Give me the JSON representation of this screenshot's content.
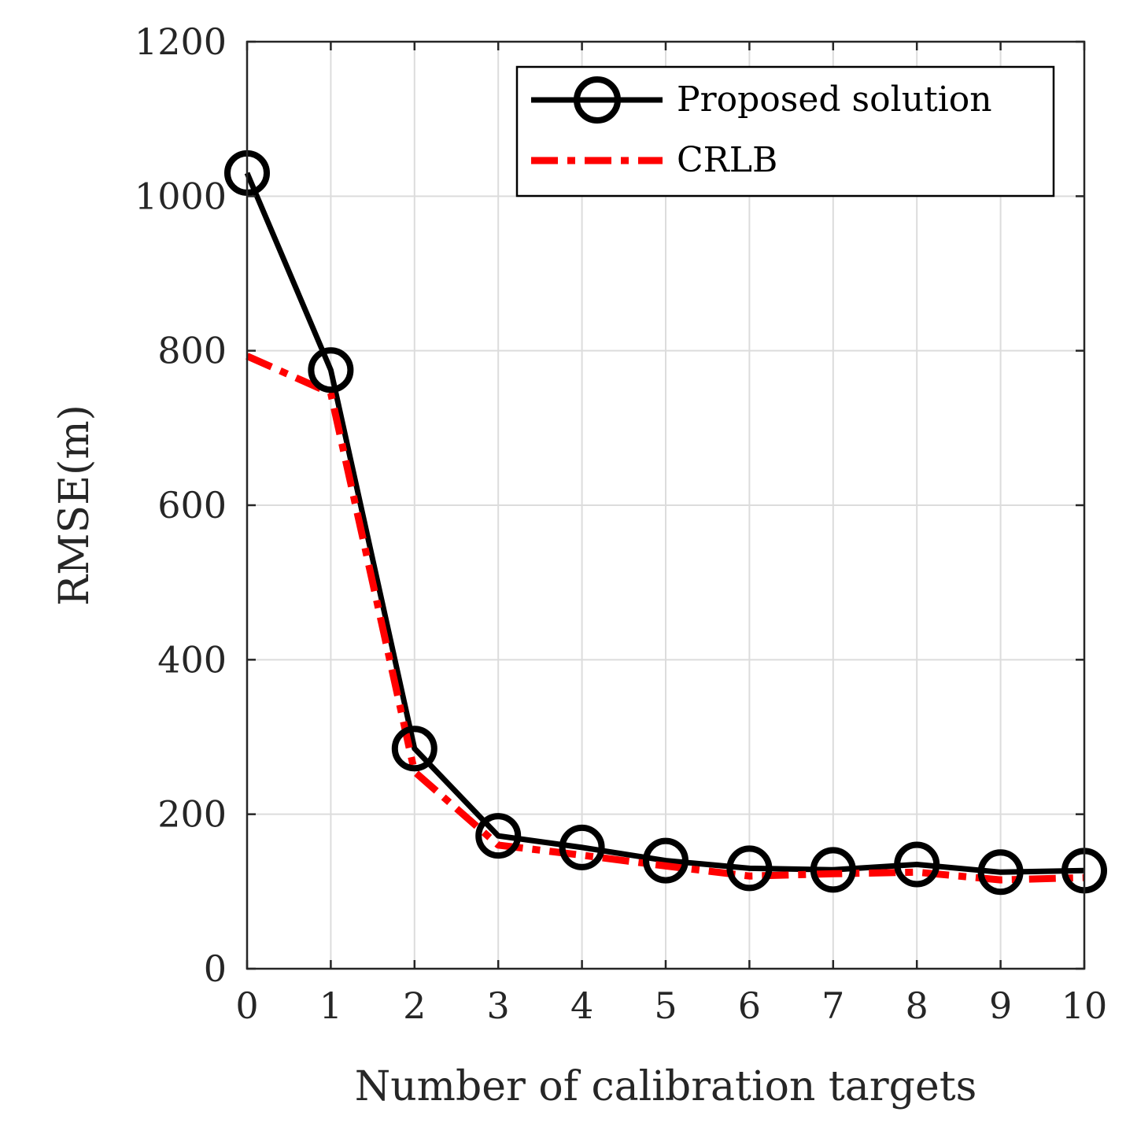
{
  "chart_data": {
    "type": "line",
    "title": "",
    "xlabel": "Number of calibration targets",
    "ylabel": "RMSE(m)",
    "xlim": [
      0,
      10
    ],
    "ylim": [
      0,
      1200
    ],
    "xticks": [
      0,
      1,
      2,
      3,
      4,
      5,
      6,
      7,
      8,
      9,
      10
    ],
    "yticks": [
      0,
      200,
      400,
      600,
      800,
      1000,
      1200
    ],
    "grid": true,
    "legend_position": "top-right",
    "series": [
      {
        "name": "Proposed solution",
        "color": "#000000",
        "style": "solid",
        "marker": "circle",
        "x": [
          0,
          1,
          2,
          3,
          4,
          5,
          6,
          7,
          8,
          9,
          10
        ],
        "values": [
          1030,
          775,
          285,
          172,
          157,
          140,
          130,
          128,
          135,
          125,
          127
        ]
      },
      {
        "name": "CRLB",
        "color": "#ff0000",
        "style": "dashdot",
        "marker": "none",
        "x": [
          0,
          1,
          2,
          3,
          4,
          5,
          6,
          7,
          8,
          9,
          10
        ],
        "values": [
          793,
          745,
          255,
          160,
          147,
          133,
          120,
          123,
          125,
          115,
          118
        ]
      }
    ]
  }
}
